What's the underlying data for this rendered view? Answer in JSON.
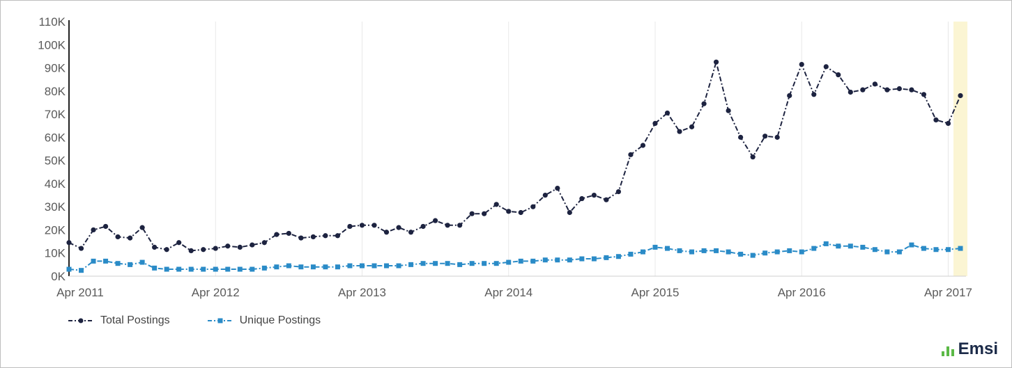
{
  "brand": {
    "name": "Emsi"
  },
  "colors": {
    "total": "#1d2340",
    "unique": "#2a8bc7",
    "highlight": "#fbf5d3",
    "grid": "#e8e8e8",
    "axis": "#222222"
  },
  "chart_data": {
    "type": "line",
    "title": "",
    "xlabel": "",
    "ylabel": "",
    "ylim": [
      0,
      110000
    ],
    "yticks": [
      {
        "value": 0,
        "label": "0K"
      },
      {
        "value": 10000,
        "label": "10K"
      },
      {
        "value": 20000,
        "label": "20K"
      },
      {
        "value": 30000,
        "label": "30K"
      },
      {
        "value": 40000,
        "label": "40K"
      },
      {
        "value": 50000,
        "label": "50K"
      },
      {
        "value": 60000,
        "label": "60K"
      },
      {
        "value": 70000,
        "label": "70K"
      },
      {
        "value": 80000,
        "label": "80K"
      },
      {
        "value": 90000,
        "label": "90K"
      },
      {
        "value": 100000,
        "label": "100K"
      },
      {
        "value": 110000,
        "label": "110K"
      }
    ],
    "xticks": [
      {
        "month_index": 0,
        "label": "Apr 2011"
      },
      {
        "month_index": 12,
        "label": "Apr 2012"
      },
      {
        "month_index": 24,
        "label": "Apr 2013"
      },
      {
        "month_index": 36,
        "label": "Apr 2014"
      },
      {
        "month_index": 48,
        "label": "Apr 2015"
      },
      {
        "month_index": 60,
        "label": "Apr 2016"
      },
      {
        "month_index": 72,
        "label": "Apr 2017"
      }
    ],
    "x_start": "Apr 2011",
    "x_end": "Apr 2017",
    "highlight": "Apr 2017",
    "grid": true,
    "legend_position": "bottom-left",
    "series": [
      {
        "name": "Total Postings",
        "marker": "circle",
        "line": "dash-dot",
        "values": [
          14500,
          12000,
          20000,
          21500,
          17000,
          16500,
          21000,
          12500,
          11500,
          14500,
          11000,
          11500,
          12000,
          13000,
          12500,
          13500,
          14500,
          18000,
          18500,
          16500,
          17000,
          17500,
          17500,
          21500,
          22000,
          22000,
          19000,
          21000,
          19000,
          21500,
          24000,
          22000,
          22000,
          27000,
          27000,
          31000,
          28000,
          27500,
          30000,
          35000,
          38000,
          27500,
          33500,
          35000,
          33000,
          36500,
          52500,
          56500,
          66000,
          70500,
          62500,
          64500,
          74500,
          92500,
          71500,
          60000,
          51500,
          60500,
          60000,
          78000,
          91500,
          78500,
          90500,
          87000,
          79500,
          80500,
          83000,
          80500,
          81000,
          80500,
          78500,
          67500,
          66000,
          78000
        ]
      },
      {
        "name": "Unique Postings",
        "marker": "square",
        "line": "dash-dot",
        "values": [
          3000,
          2500,
          6500,
          6500,
          5500,
          5000,
          6000,
          3500,
          3000,
          3000,
          3000,
          3000,
          3000,
          3000,
          3000,
          3000,
          3500,
          4000,
          4500,
          4000,
          4000,
          4000,
          4000,
          4500,
          4500,
          4500,
          4500,
          4500,
          5000,
          5500,
          5500,
          5500,
          5000,
          5500,
          5500,
          5500,
          6000,
          6500,
          6500,
          7000,
          7000,
          7000,
          7500,
          7500,
          8000,
          8500,
          9500,
          10500,
          12500,
          12000,
          11000,
          10500,
          11000,
          11000,
          10500,
          9500,
          9000,
          10000,
          10500,
          11000,
          10500,
          12000,
          14000,
          13000,
          13000,
          12500,
          11500,
          10500,
          10500,
          13500,
          12000,
          11500,
          11500,
          12000
        ]
      }
    ]
  }
}
